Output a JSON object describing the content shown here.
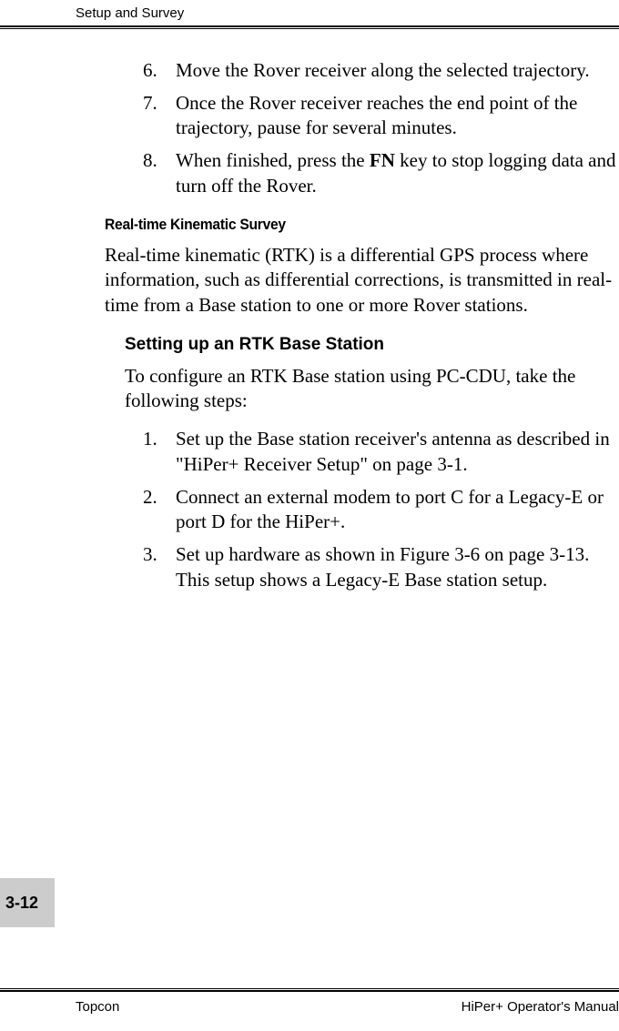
{
  "header": {
    "title": "Setup and Survey"
  },
  "footer": {
    "left": "Topcon",
    "right": "HiPer+ Operator's Manual"
  },
  "page_tab": "3-12",
  "colors": {
    "background": "#ffffff",
    "text": "#000000",
    "tab_bg": "#cccccc",
    "rule": "#000000"
  },
  "typography": {
    "body_family": "Times New Roman",
    "heading_family": "Arial",
    "body_size_pt": 16,
    "heading_size_pt": 13,
    "subheading_size_pt": 14
  },
  "top_list": [
    {
      "n": "6.",
      "text": "Move the Rover receiver along the selected trajectory."
    },
    {
      "n": "7.",
      "text": "Once the Rover receiver reaches the end point of the trajectory, pause for several minutes."
    },
    {
      "n": "8.",
      "pre": "When finished, press the ",
      "bold": "FN",
      "post": " key to stop logging data and turn off the Rover."
    }
  ],
  "section": {
    "heading": "Real-time Kinematic Survey",
    "paragraph": "Real-time kinematic (RTK) is a differential GPS process where information, such as differential corrections, is transmitted in real-time from a Base station to one or more Rover stations."
  },
  "subsection": {
    "heading": "Setting up an RTK Base Station",
    "intro": "To configure an RTK Base station using PC-CDU, take the following steps:",
    "list": [
      {
        "n": "1.",
        "text": "Set up the Base station receiver's antenna as described in \"HiPer+ Receiver Setup\" on page 3-1."
      },
      {
        "n": "2.",
        "text": "Connect an external modem to port C for a Legacy-E or port D for the HiPer+."
      },
      {
        "n": "3.",
        "text": "Set up hardware as shown in Figure 3-6 on page 3-13. This setup shows a Legacy-E Base station setup."
      }
    ]
  }
}
